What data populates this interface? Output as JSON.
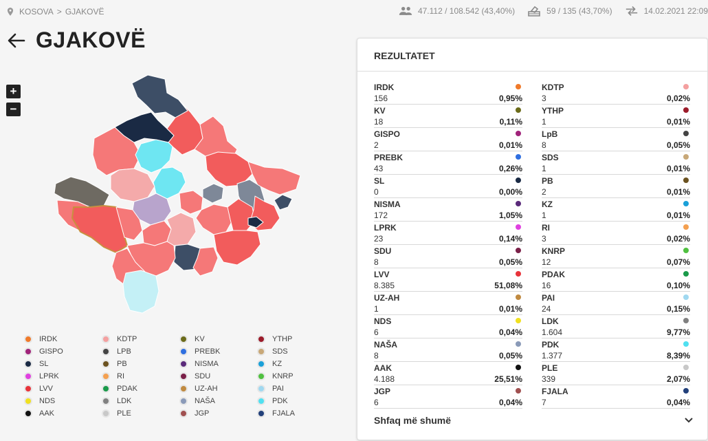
{
  "breadcrumb": {
    "country": "KOSOVA",
    "separator": ">",
    "municipality": "GJAKOVË"
  },
  "stats": {
    "voters": "47.112 / 108.542 (43,40%)",
    "stations": "59 / 135 (43,70%)",
    "updated": "14.02.2021 22:09"
  },
  "page": {
    "title": "GJAKOVË"
  },
  "zoom": {
    "in": "+",
    "out": "−"
  },
  "legend": [
    {
      "label": "IRDK",
      "color": "#f07a2a"
    },
    {
      "label": "KDTP",
      "color": "#f4a0a0"
    },
    {
      "label": "KV",
      "color": "#6b6b1a"
    },
    {
      "label": "YTHP",
      "color": "#9b1b2a"
    },
    {
      "label": "GISPO",
      "color": "#a0237a"
    },
    {
      "label": "LPB",
      "color": "#444444"
    },
    {
      "label": "PREBK",
      "color": "#2f6fe0"
    },
    {
      "label": "SDS",
      "color": "#c8a878"
    },
    {
      "label": "SL",
      "color": "#1a2a44"
    },
    {
      "label": "PB",
      "color": "#6b5220"
    },
    {
      "label": "NISMA",
      "color": "#5a2a7a"
    },
    {
      "label": "KZ",
      "color": "#1aa0d8"
    },
    {
      "label": "LPRK",
      "color": "#e040e0"
    },
    {
      "label": "RI",
      "color": "#f4a050"
    },
    {
      "label": "SDU",
      "color": "#7a2048"
    },
    {
      "label": "KNRP",
      "color": "#50c040"
    },
    {
      "label": "LVV",
      "color": "#e8333a"
    },
    {
      "label": "PDAK",
      "color": "#1a9a4a"
    },
    {
      "label": "UZ-AH",
      "color": "#c08a40"
    },
    {
      "label": "PAI",
      "color": "#a0d8f0"
    },
    {
      "label": "NDS",
      "color": "#f0e020"
    },
    {
      "label": "LDK",
      "color": "#808080"
    },
    {
      "label": "NAŠA",
      "color": "#8a9ab8"
    },
    {
      "label": "PDK",
      "color": "#50e0f0"
    },
    {
      "label": "AAK",
      "color": "#111111"
    },
    {
      "label": "PLE",
      "color": "#c8c8c8"
    },
    {
      "label": "JGP",
      "color": "#a05050"
    },
    {
      "label": "FJALA",
      "color": "#22407a"
    }
  ],
  "results_panel": {
    "title": "REZULTATET",
    "show_more": "Shfaq më shumë",
    "left": [
      {
        "party": "IRDK",
        "votes": "156",
        "pct": "0,95%",
        "color": "#f07a2a"
      },
      {
        "party": "KV",
        "votes": "18",
        "pct": "0,11%",
        "color": "#6b6b1a"
      },
      {
        "party": "GISPO",
        "votes": "2",
        "pct": "0,01%",
        "color": "#a0237a"
      },
      {
        "party": "PREBK",
        "votes": "43",
        "pct": "0,26%",
        "color": "#2f6fe0"
      },
      {
        "party": "SL",
        "votes": "0",
        "pct": "0,00%",
        "color": "#1a2a44"
      },
      {
        "party": "NISMA",
        "votes": "172",
        "pct": "1,05%",
        "color": "#5a2a7a"
      },
      {
        "party": "LPRK",
        "votes": "23",
        "pct": "0,14%",
        "color": "#e040e0"
      },
      {
        "party": "SDU",
        "votes": "8",
        "pct": "0,05%",
        "color": "#7a2048"
      },
      {
        "party": "LVV",
        "votes": "8.385",
        "pct": "51,08%",
        "color": "#e8333a"
      },
      {
        "party": "UZ-AH",
        "votes": "1",
        "pct": "0,01%",
        "color": "#c08a40"
      },
      {
        "party": "NDS",
        "votes": "6",
        "pct": "0,04%",
        "color": "#f0e020"
      },
      {
        "party": "NAŠA",
        "votes": "8",
        "pct": "0,05%",
        "color": "#8a9ab8"
      },
      {
        "party": "AAK",
        "votes": "4.188",
        "pct": "25,51%",
        "color": "#111111"
      },
      {
        "party": "JGP",
        "votes": "6",
        "pct": "0,04%",
        "color": "#a05050"
      }
    ],
    "right": [
      {
        "party": "KDTP",
        "votes": "3",
        "pct": "0,02%",
        "color": "#f4a0a0"
      },
      {
        "party": "YTHP",
        "votes": "1",
        "pct": "0,01%",
        "color": "#9b1b2a"
      },
      {
        "party": "LpB",
        "votes": "8",
        "pct": "0,05%",
        "color": "#444444"
      },
      {
        "party": "SDS",
        "votes": "1",
        "pct": "0,01%",
        "color": "#c8a878"
      },
      {
        "party": "PB",
        "votes": "2",
        "pct": "0,01%",
        "color": "#6b5220"
      },
      {
        "party": "KZ",
        "votes": "1",
        "pct": "0,01%",
        "color": "#1aa0d8"
      },
      {
        "party": "RI",
        "votes": "3",
        "pct": "0,02%",
        "color": "#f4a050"
      },
      {
        "party": "KNRP",
        "votes": "12",
        "pct": "0,07%",
        "color": "#50c040"
      },
      {
        "party": "PDAK",
        "votes": "16",
        "pct": "0,10%",
        "color": "#1a9a4a"
      },
      {
        "party": "PAI",
        "votes": "24",
        "pct": "0,15%",
        "color": "#a0d8f0"
      },
      {
        "party": "LDK",
        "votes": "1.604",
        "pct": "9,77%",
        "color": "#808080"
      },
      {
        "party": "PDK",
        "votes": "1.377",
        "pct": "8,39%",
        "color": "#50e0f0"
      },
      {
        "party": "PLE",
        "votes": "339",
        "pct": "2,07%",
        "color": "#c8c8c8"
      },
      {
        "party": "FJALA",
        "votes": "7",
        "pct": "0,04%",
        "color": "#22407a"
      }
    ]
  },
  "map_colors": {
    "lvv_light": "#f57878",
    "lvv": "#f25c5c",
    "lvv_pale": "#f4a0a0",
    "aak": "#3d4e66",
    "aak_dark": "#1a2a44",
    "pdk": "#6ee6f2",
    "pai": "#c4f0f6",
    "nisma": "#b8a4cc",
    "lpb": "#6e6a62",
    "lpb_gray": "#7e8898",
    "highlight_border": "#c89040",
    "pink": "#f4aaaa"
  }
}
